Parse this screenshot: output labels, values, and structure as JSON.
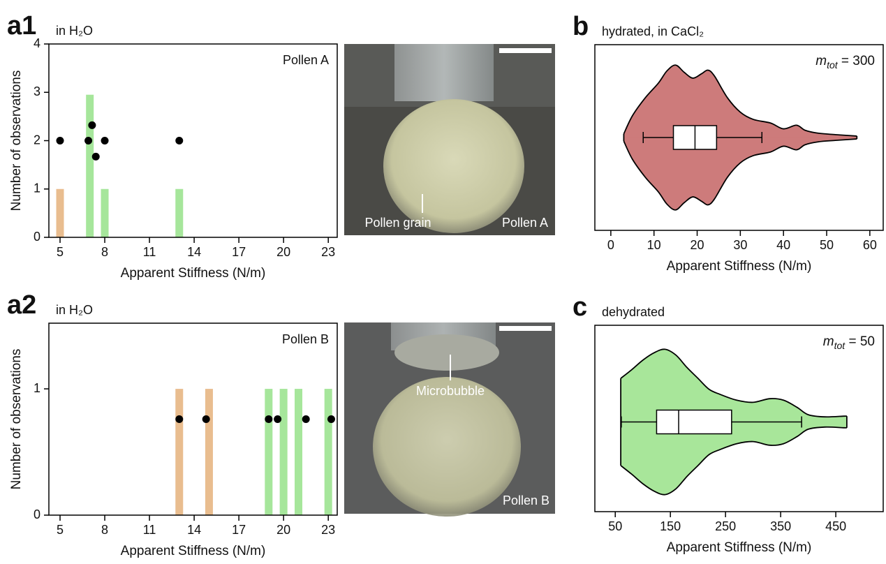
{
  "chart_data": [
    {
      "type": "bar",
      "panel_label": "a1",
      "subtitle": "in H₂O",
      "annotation": "Pollen A",
      "xlabel": "Apparent Stiffness (N/m)",
      "ylabel": "Number of observations",
      "xlim": [
        4.25,
        23.6
      ],
      "xticks": [
        5,
        8,
        11,
        14,
        17,
        20,
        23
      ],
      "ylim": [
        0,
        4
      ],
      "yticks": [
        0,
        1,
        2,
        3,
        4
      ],
      "bars": {
        "x": [
          5,
          7,
          8,
          13
        ],
        "values": [
          1,
          2.95,
          1,
          1
        ],
        "colors": [
          "#e9bd8f",
          "#a6e69b",
          "#a6e69b",
          "#a6e69b"
        ]
      },
      "points": {
        "x": [
          5,
          6.9,
          7.15,
          7.4,
          8,
          13
        ],
        "y": [
          2,
          2,
          2.32,
          1.67,
          2,
          2
        ],
        "color": "#000000"
      }
    },
    {
      "type": "bar",
      "panel_label": "a2",
      "subtitle": "in H₂O",
      "annotation": "Pollen B",
      "xlabel": "Apparent Stiffness (N/m)",
      "ylabel": "Number of observations",
      "xlim": [
        4.25,
        23.6
      ],
      "xticks": [
        5,
        8,
        11,
        14,
        17,
        20,
        23
      ],
      "ylim": [
        0,
        1.52
      ],
      "yticks": [
        0,
        1
      ],
      "bars": {
        "x": [
          13,
          15,
          19,
          20,
          21,
          23
        ],
        "values": [
          1,
          1,
          1,
          1,
          1,
          1
        ],
        "colors": [
          "#e9bd8f",
          "#e9bd8f",
          "#a6e69b",
          "#a6e69b",
          "#a6e69b",
          "#a6e69b"
        ]
      },
      "points": {
        "x": [
          13,
          14.8,
          19,
          19.6,
          21.5,
          23.2
        ],
        "y": [
          0.76,
          0.76,
          0.76,
          0.76,
          0.76,
          0.76
        ],
        "color": "#000000"
      }
    },
    {
      "type": "violin",
      "panel_label": "b",
      "subtitle": "hydrated, in CaCl₂",
      "annotation": {
        "symbol": "m",
        "subscript": "tot",
        "text": " = 300"
      },
      "xlabel": "Apparent Stiffness (N/m)",
      "xlim": [
        -3.7,
        63.1
      ],
      "xticks": [
        0,
        10,
        20,
        30,
        40,
        50,
        60
      ],
      "color": "#cd7b7b",
      "violin": {
        "x": [
          3,
          5,
          8,
          11,
          13,
          15,
          17,
          19,
          21,
          22.5,
          24,
          27,
          30,
          33,
          37,
          40,
          43,
          45,
          48,
          52,
          57
        ],
        "density": [
          0.05,
          0.3,
          0.55,
          0.75,
          0.92,
          1.0,
          0.9,
          0.82,
          0.88,
          0.93,
          0.85,
          0.55,
          0.35,
          0.25,
          0.2,
          0.12,
          0.17,
          0.1,
          0.06,
          0.04,
          0.02
        ]
      },
      "box": {
        "whisker_low": 7.5,
        "q1": 14.5,
        "median": 19.5,
        "q3": 24.5,
        "whisker_high": 35
      }
    },
    {
      "type": "violin",
      "panel_label": "c",
      "subtitle": "dehydrated",
      "annotation": {
        "symbol": "m",
        "subscript": "tot",
        "text": " = 50"
      },
      "xlabel": "Apparent Stiffness (N/m)",
      "xlim": [
        13,
        536
      ],
      "xticks": [
        50,
        150,
        250,
        350,
        450
      ],
      "color": "#a8e69a",
      "violin": {
        "x": [
          60,
          80,
          100,
          120,
          140,
          160,
          180,
          200,
          220,
          240,
          270,
          300,
          330,
          355,
          380,
          400,
          430,
          465,
          470
        ],
        "density": [
          0.6,
          0.72,
          0.85,
          0.95,
          1.0,
          0.92,
          0.75,
          0.6,
          0.45,
          0.38,
          0.3,
          0.27,
          0.32,
          0.3,
          0.2,
          0.1,
          0.07,
          0.08,
          0.08
        ]
      },
      "box": {
        "whisker_low": 61,
        "q1": 125,
        "median": 165,
        "q3": 261,
        "whisker_high": 388
      }
    }
  ],
  "images": [
    {
      "annotations": [
        "Pollen grain",
        "Pollen A"
      ]
    },
    {
      "annotations": [
        "Microbubble",
        "Pollen B"
      ]
    }
  ]
}
